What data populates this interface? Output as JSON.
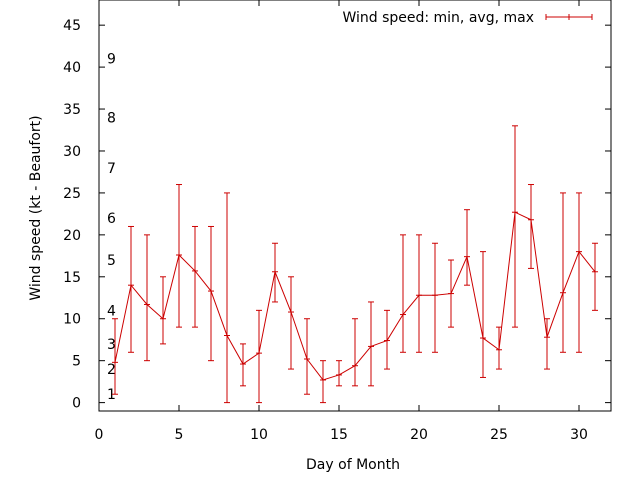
{
  "chart_data": {
    "type": "line",
    "title": "",
    "xlabel": "Day of Month",
    "ylabel": "Wind speed (kt - Beaufort)",
    "xlim": [
      0,
      32
    ],
    "ylim": [
      -1,
      48
    ],
    "xticks": [
      0,
      5,
      10,
      15,
      20,
      25,
      30
    ],
    "yticks": [
      0,
      5,
      10,
      15,
      20,
      25,
      30,
      35,
      40,
      45
    ],
    "grid": false,
    "legend_position": "top-right",
    "series": [
      {
        "name": "Wind speed: min, avg, max",
        "color": "#cc0000",
        "x": [
          1,
          2,
          3,
          4,
          5,
          6,
          7,
          8,
          9,
          10,
          11,
          12,
          13,
          14,
          15,
          16,
          17,
          18,
          19,
          20,
          21,
          22,
          23,
          24,
          25,
          26,
          27,
          28,
          29,
          30,
          31
        ],
        "min": [
          1,
          6,
          5,
          7,
          9,
          9,
          5,
          0,
          2,
          0,
          12,
          4,
          1,
          0,
          2,
          2,
          2,
          4,
          6,
          6,
          6,
          9,
          14,
          3,
          4,
          9,
          16,
          4,
          6,
          6,
          11
        ],
        "avg": [
          4.8,
          14,
          11.7,
          10,
          17.6,
          15.7,
          13.3,
          8,
          4.6,
          5.9,
          15.6,
          10.8,
          5.2,
          2.7,
          3.3,
          4.4,
          6.7,
          7.4,
          10.5,
          12.8,
          12.8,
          13,
          17.4,
          7.7,
          6.3,
          22.7,
          21.8,
          7.8,
          13.1,
          18,
          15.6
        ],
        "max": [
          10,
          21,
          20,
          15,
          26,
          21,
          21,
          25,
          7,
          11,
          19,
          15,
          10,
          5,
          5,
          10,
          12,
          11,
          20,
          20,
          19,
          17,
          23,
          18,
          9,
          33,
          26,
          10,
          25,
          25,
          19
        ]
      }
    ],
    "beaufort_labels": [
      {
        "text": "1",
        "y": 1
      },
      {
        "text": "2",
        "y": 4
      },
      {
        "text": "3",
        "y": 7
      },
      {
        "text": "4",
        "y": 11
      },
      {
        "text": "5",
        "y": 17
      },
      {
        "text": "6",
        "y": 22
      },
      {
        "text": "7",
        "y": 28
      },
      {
        "text": "8",
        "y": 34
      },
      {
        "text": "9",
        "y": 41
      }
    ]
  }
}
